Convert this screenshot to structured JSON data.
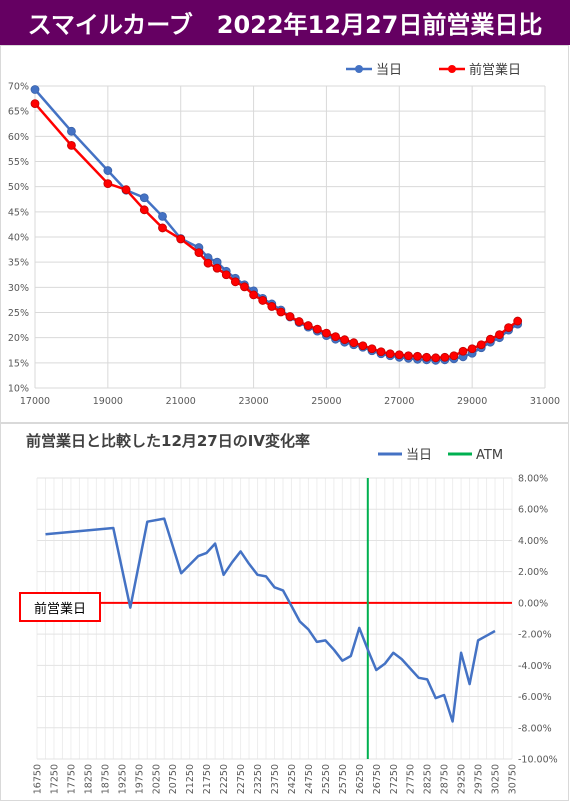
{
  "title": "スマイルカーブ　2022年12月27日前営業日比",
  "colors": {
    "title_bg": "#650062",
    "today": "#4472c4",
    "prev": "#ff0000",
    "atm": "#00b050",
    "change_line": "#4472c4",
    "baseline": "#ff0000"
  },
  "chart_data": [
    {
      "type": "line",
      "title": "",
      "legend_position": "top-right",
      "xlim": [
        17000,
        31000
      ],
      "ylim": [
        10,
        70
      ],
      "x_ticks": [
        "17000",
        "19000",
        "21000",
        "23000",
        "25000",
        "27000",
        "29000",
        "31000"
      ],
      "y_ticks": [
        "10%",
        "15%",
        "20%",
        "25%",
        "30%",
        "35%",
        "40%",
        "45%",
        "50%",
        "55%",
        "60%",
        "65%",
        "70%"
      ],
      "grid": true,
      "series": [
        {
          "name": "当日",
          "x": [
            17000,
            18000,
            19000,
            19500,
            20000,
            20500,
            21000,
            21500,
            21750,
            22000,
            22250,
            22500,
            22750,
            23000,
            23250,
            23500,
            23750,
            24000,
            24250,
            24500,
            24750,
            25000,
            25250,
            25500,
            25750,
            26000,
            26250,
            26500,
            26750,
            27000,
            27250,
            27500,
            27750,
            28000,
            28250,
            28500,
            28750,
            29000,
            29250,
            29500,
            29750,
            30000,
            30250
          ],
          "values": [
            69.3,
            61.0,
            53.2,
            49.3,
            47.8,
            44.1,
            39.7,
            37.9,
            35.9,
            35.0,
            33.2,
            31.8,
            30.5,
            29.3,
            27.8,
            26.7,
            25.5,
            24.1,
            23.0,
            22.1,
            21.3,
            20.4,
            19.7,
            19.1,
            18.6,
            18.1,
            17.4,
            16.8,
            16.4,
            16.1,
            15.9,
            15.7,
            15.6,
            15.5,
            15.6,
            15.8,
            16.2,
            16.9,
            18.0,
            19.1,
            20.0,
            21.5,
            22.7
          ]
        },
        {
          "name": "前営業日",
          "x": [
            17000,
            18000,
            19000,
            19500,
            20000,
            20500,
            21000,
            21500,
            21750,
            22000,
            22250,
            22500,
            22750,
            23000,
            23250,
            23500,
            23750,
            24000,
            24250,
            24500,
            24750,
            25000,
            25250,
            25500,
            25750,
            26000,
            26250,
            26500,
            26750,
            27000,
            27250,
            27500,
            27750,
            28000,
            28250,
            28500,
            28750,
            29000,
            29250,
            29500,
            29750,
            30000,
            30250
          ],
          "values": [
            66.5,
            58.2,
            50.6,
            49.4,
            45.4,
            41.8,
            39.6,
            36.9,
            34.8,
            33.8,
            32.5,
            31.1,
            30.1,
            28.5,
            27.4,
            26.2,
            25.1,
            24.2,
            23.2,
            22.4,
            21.7,
            20.9,
            20.2,
            19.6,
            19.0,
            18.4,
            17.8,
            17.2,
            16.8,
            16.6,
            16.4,
            16.3,
            16.1,
            16.0,
            16.1,
            16.4,
            17.3,
            17.8,
            18.6,
            19.7,
            20.6,
            22.0,
            23.3
          ]
        }
      ]
    },
    {
      "type": "line",
      "title": "前営業日と比較した12月27日のIV変化率",
      "legend_position": "top-right",
      "legend": [
        "当日",
        "ATM"
      ],
      "ylim": [
        -10,
        8
      ],
      "y_ticks": [
        "8.00%",
        "6.00%",
        "4.00%",
        "2.00%",
        "0.00%",
        "-2.00%",
        "-4.00%",
        "-6.00%",
        "-8.00%",
        "-10.00%"
      ],
      "x_categories": [
        "16750",
        "17250",
        "17750",
        "18250",
        "18750",
        "19250",
        "19750",
        "20250",
        "20750",
        "21250",
        "21750",
        "22250",
        "22750",
        "23250",
        "23750",
        "24250",
        "24750",
        "25250",
        "25750",
        "26250",
        "26750",
        "27250",
        "27750",
        "28250",
        "28750",
        "29250",
        "29750",
        "30250",
        "30750"
      ],
      "atm_strike": 26500,
      "baseline_label": "前営業日",
      "series": [
        {
          "name": "当日",
          "x": [
            17000,
            18000,
            19000,
            19500,
            20000,
            20500,
            21000,
            21500,
            21750,
            22000,
            22250,
            22500,
            22750,
            23000,
            23250,
            23500,
            23750,
            24000,
            24250,
            24500,
            24750,
            25000,
            25250,
            25500,
            25750,
            26000,
            26250,
            26500,
            26750,
            27000,
            27250,
            27500,
            27750,
            28000,
            28250,
            28500,
            28750,
            29000,
            29250,
            29500,
            29750,
            30000,
            30250
          ],
          "values": [
            4.4,
            4.6,
            4.8,
            -0.3,
            5.2,
            5.4,
            1.9,
            3.0,
            3.2,
            3.8,
            1.8,
            2.6,
            3.3,
            2.5,
            1.8,
            1.7,
            1.0,
            0.8,
            -0.2,
            -1.2,
            -1.7,
            -2.5,
            -2.4,
            -3.0,
            -3.7,
            -3.4,
            -1.6,
            -3.0,
            -4.3,
            -3.9,
            -3.2,
            -3.6,
            -4.2,
            -4.8,
            -4.9,
            -6.1,
            -5.9,
            -7.6,
            -3.2,
            -5.2,
            -2.4,
            -2.1,
            -1.8
          ]
        }
      ]
    }
  ]
}
